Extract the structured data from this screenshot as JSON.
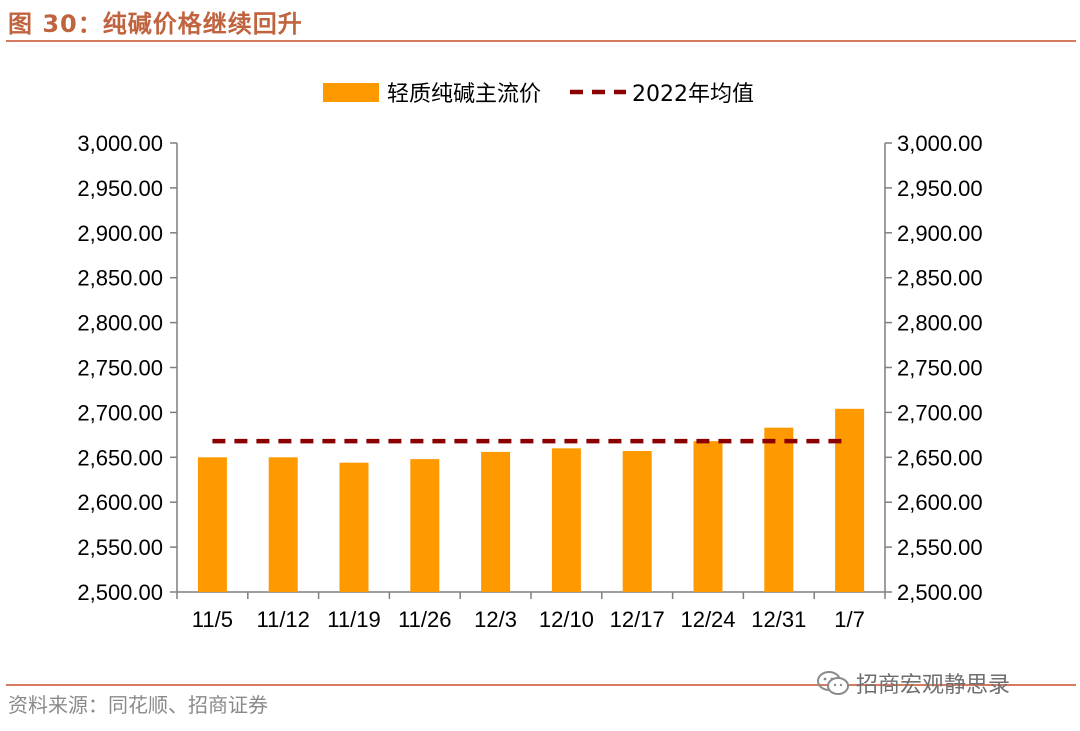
{
  "header": {
    "title": "图 30：纯碱价格继续回升"
  },
  "footer": {
    "source": "资料来源：同花顺、招商证券",
    "watermark": "招商宏观静思录"
  },
  "colors": {
    "bar": "#ff9900",
    "avg_line": "#8b0000",
    "accent": "#c0633f",
    "rule": "#d77b5f"
  },
  "chart_data": {
    "type": "bar",
    "categories": [
      "11/5",
      "11/12",
      "11/19",
      "11/26",
      "12/3",
      "12/10",
      "12/17",
      "12/24",
      "12/31",
      "1/7"
    ],
    "series": [
      {
        "name": "轻质纯碱主流价",
        "type": "bar",
        "values": [
          2650,
          2650,
          2644,
          2648,
          2656,
          2660,
          2657,
          2668,
          2683,
          2704
        ]
      },
      {
        "name": "2022年均值",
        "type": "line",
        "style": "dashed",
        "values": [
          2668,
          2668,
          2668,
          2668,
          2668,
          2668,
          2668,
          2668,
          2668,
          2668
        ]
      }
    ],
    "ylim": [
      2500,
      3000
    ],
    "yticks": [
      2500,
      2550,
      2600,
      2650,
      2700,
      2750,
      2800,
      2850,
      2900,
      2950,
      3000
    ],
    "ytick_labels": [
      "2,500.00",
      "2,550.00",
      "2,600.00",
      "2,650.00",
      "2,700.00",
      "2,750.00",
      "2,800.00",
      "2,850.00",
      "2,900.00",
      "2,950.00",
      "3,000.00"
    ],
    "secondary_axis": true,
    "legend_position": "top-center",
    "xlabel": "",
    "ylabel": ""
  }
}
